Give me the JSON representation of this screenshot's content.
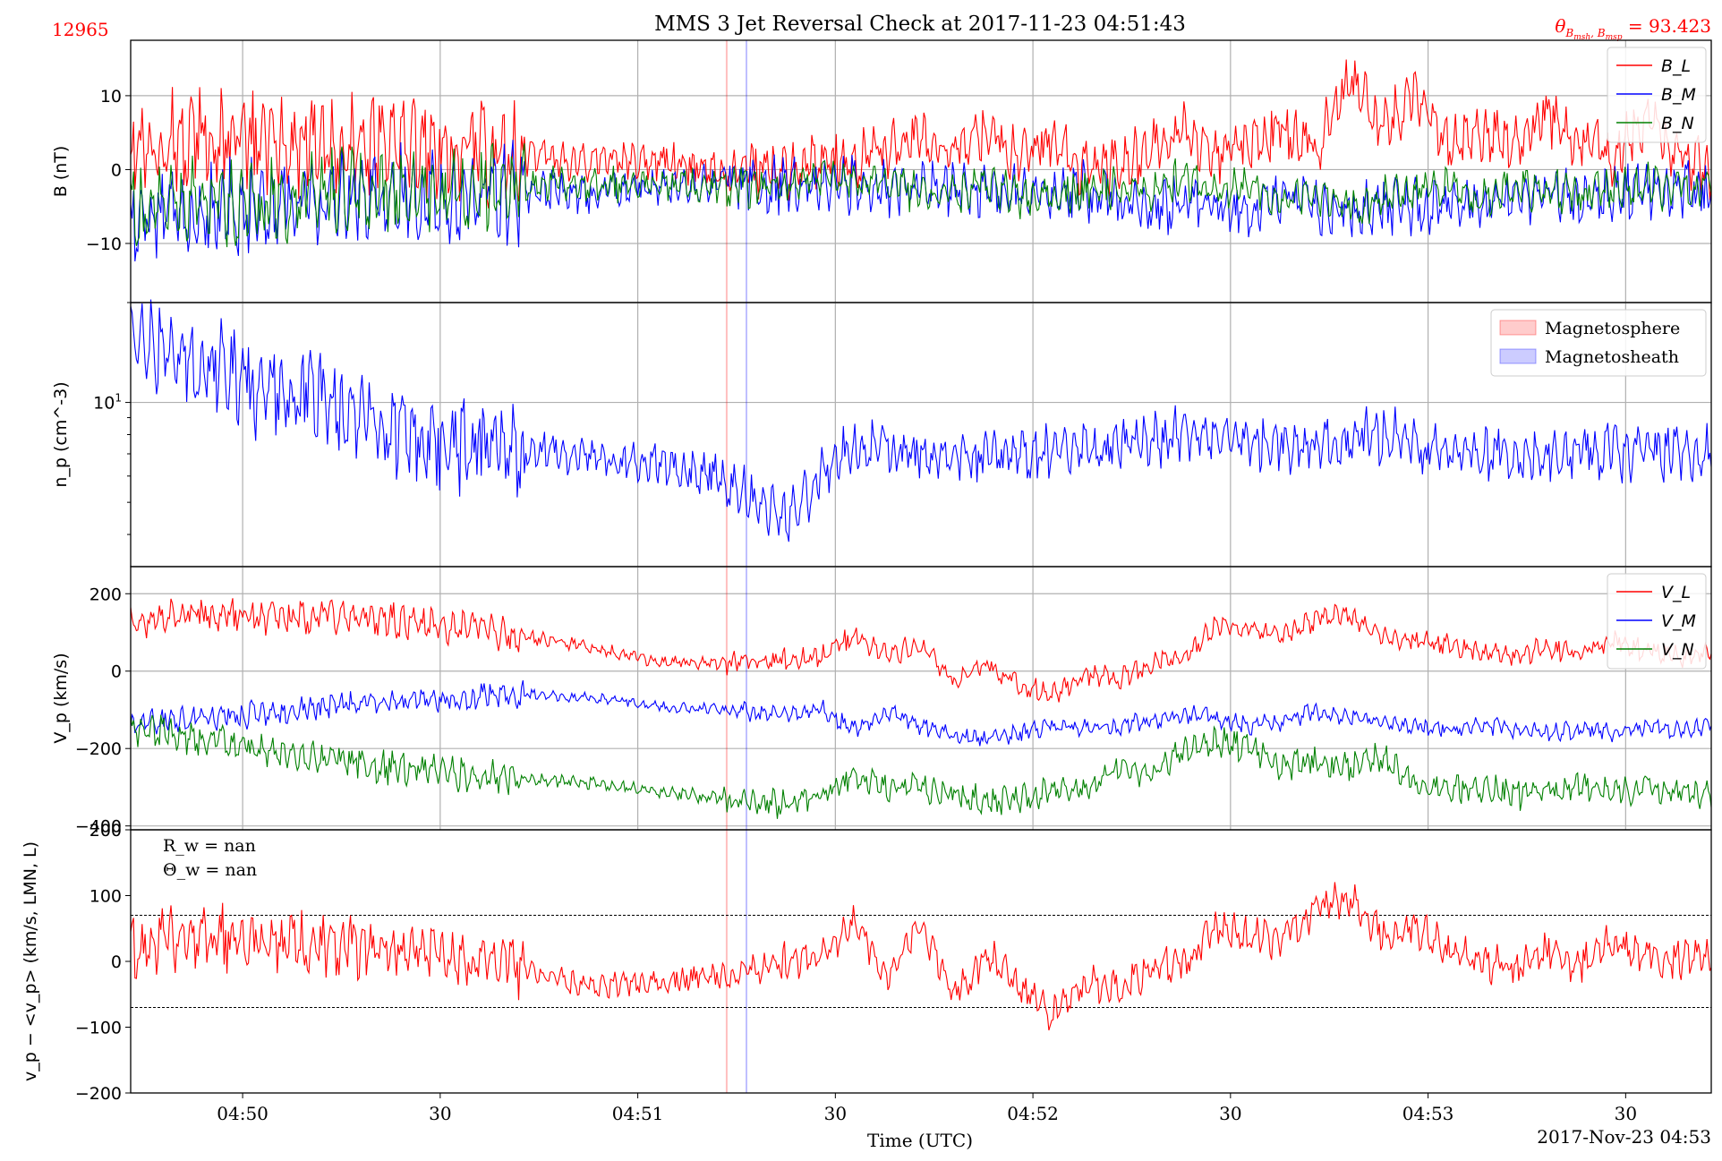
{
  "figure": {
    "title": "MMS 3 Jet Reversal Check at 2017-11-23 04:51:43",
    "event_id": "12965",
    "angle_label": "θ_{B_msh, B_msp} = 93.423",
    "xlabel": "Time (UTC)",
    "date_label": "2017-Nov-23 04:53"
  },
  "colors": {
    "L": "#ff0000",
    "M": "#0000ff",
    "N": "#008000",
    "magnetosphere": "#ff0000",
    "magnetosheath": "#0000ff",
    "event_id": "#ff0000",
    "angle_label": "#ff0000"
  },
  "chart_data": [
    {
      "type": "line",
      "name": "magnetic-field",
      "ylabel": "B (nT)",
      "ylim": [
        -18,
        17.5
      ],
      "yticks": [
        -10,
        0,
        10
      ],
      "grid": true,
      "legend": "upper right",
      "series": [
        {
          "name": "B_L",
          "color": "#ff0000"
        },
        {
          "name": "B_M",
          "color": "#0000ff"
        },
        {
          "name": "B_N",
          "color": "#008000"
        }
      ],
      "x_seconds_after_04_49_43": [
        0,
        10,
        20,
        30,
        40,
        50,
        60,
        70,
        80,
        90,
        100,
        105,
        110,
        115,
        120,
        125,
        130,
        135,
        140,
        145,
        150,
        155,
        160,
        165,
        170,
        175,
        180,
        185,
        190,
        195,
        200,
        205,
        210,
        215,
        220,
        225,
        230,
        235,
        240
      ],
      "values_approx": {
        "B_L": [
          3,
          4,
          4,
          3,
          3,
          2,
          2,
          1,
          1,
          0,
          0,
          1,
          1,
          3,
          4,
          3,
          5,
          2,
          4,
          0,
          1,
          3,
          5,
          2,
          4,
          6,
          3,
          12,
          6,
          10,
          3,
          5,
          3,
          7,
          4,
          2,
          7,
          2,
          0
        ],
        "B_M": [
          -6,
          -6,
          -5,
          -4,
          -4,
          -3,
          -3,
          -3,
          -2,
          -2,
          -2,
          -3,
          -2,
          -3,
          -2,
          -3,
          -3,
          -3,
          -3,
          -3,
          -4,
          -5,
          -4,
          -5,
          -6,
          -4,
          -5,
          -6,
          -5,
          -5,
          -4,
          -5,
          -4,
          -3,
          -4,
          -3,
          -3,
          -3,
          -3
        ],
        "B_N": [
          -5,
          -4,
          -4,
          -3,
          -3,
          -3,
          -2,
          -2,
          -2,
          -2,
          -2,
          -1,
          -1,
          -2,
          -3,
          -3,
          -2,
          -4,
          -3,
          -3,
          -2,
          -3,
          -1,
          -3,
          -2,
          -4,
          -3,
          -5,
          -4,
          -3,
          -2,
          -4,
          -2,
          -3,
          -3,
          -3,
          -2,
          -3,
          -2
        ]
      }
    },
    {
      "type": "line",
      "name": "proton-density",
      "ylabel": "n_p (cm^-3)",
      "yscale": "log",
      "ylim": [
        3.2,
        20
      ],
      "ytick_label": "10^1",
      "grid": true,
      "legend": "upper right",
      "legend_entries": [
        {
          "name": "Magnetosphere",
          "color": "#ff0000"
        },
        {
          "name": "Magnetosheath",
          "color": "#0000ff"
        }
      ],
      "series": [
        {
          "name": "n_p",
          "color": "#0000ff"
        }
      ],
      "x_seconds_after_04_49_43": [
        0,
        10,
        20,
        30,
        40,
        50,
        60,
        70,
        80,
        90,
        95,
        100,
        105,
        110,
        120,
        130,
        140,
        150,
        160,
        170,
        180,
        190,
        200,
        210,
        220,
        230,
        240
      ],
      "values_approx": [
        15,
        14,
        11,
        10,
        8,
        7.5,
        7,
        7,
        6.5,
        6,
        5,
        4.5,
        6,
        7.5,
        7,
        7,
        7,
        7.5,
        8,
        7.5,
        7.5,
        8,
        7,
        7,
        7,
        7,
        7
      ]
    },
    {
      "type": "line",
      "name": "proton-velocity",
      "ylabel": "V_p (km/s)",
      "ylim": [
        -410,
        270
      ],
      "yticks": [
        -400,
        -200,
        0,
        200
      ],
      "grid": true,
      "legend": "upper right",
      "series": [
        {
          "name": "V_L",
          "color": "#ff0000"
        },
        {
          "name": "V_M",
          "color": "#0000ff"
        },
        {
          "name": "V_N",
          "color": "#008000"
        }
      ],
      "x_seconds_after_04_49_43": [
        0,
        10,
        20,
        30,
        40,
        50,
        60,
        70,
        80,
        90,
        100,
        105,
        110,
        115,
        120,
        125,
        130,
        135,
        140,
        145,
        150,
        155,
        160,
        165,
        170,
        175,
        180,
        185,
        190,
        195,
        200,
        205,
        210,
        215,
        220,
        225,
        230,
        235,
        240
      ],
      "values_approx": {
        "V_L": [
          120,
          150,
          140,
          140,
          130,
          110,
          90,
          60,
          25,
          20,
          30,
          40,
          90,
          40,
          70,
          -30,
          20,
          -40,
          -60,
          -10,
          -20,
          20,
          40,
          120,
          110,
          100,
          130,
          150,
          90,
          80,
          70,
          50,
          40,
          60,
          40,
          80,
          50,
          40,
          50
        ],
        "V_M": [
          -140,
          -120,
          -110,
          -90,
          -80,
          -70,
          -60,
          -70,
          -90,
          -100,
          -110,
          -100,
          -150,
          -110,
          -140,
          -170,
          -170,
          -160,
          -140,
          -150,
          -140,
          -130,
          -110,
          -120,
          -140,
          -130,
          -100,
          -120,
          -130,
          -140,
          -150,
          -140,
          -150,
          -160,
          -150,
          -160,
          -140,
          -150,
          -140
        ],
        "V_N": [
          -150,
          -170,
          -200,
          -230,
          -250,
          -270,
          -280,
          -290,
          -310,
          -330,
          -340,
          -320,
          -270,
          -310,
          -300,
          -320,
          -340,
          -330,
          -300,
          -310,
          -250,
          -270,
          -200,
          -180,
          -200,
          -250,
          -230,
          -250,
          -220,
          -290,
          -300,
          -300,
          -320,
          -310,
          -300,
          -310,
          -300,
          -310,
          -320
        ]
      }
    },
    {
      "type": "line",
      "name": "velocity-residual",
      "ylabel": "v_p − <v_p> (km/s, LMN, L)",
      "ylim": [
        -200,
        200
      ],
      "yticks": [
        -200,
        -100,
        0,
        100,
        200
      ],
      "threshold_lines": [
        70,
        -70
      ],
      "grid": false,
      "annotations": [
        "R_w = nan",
        "Θ_w = nan"
      ],
      "series": [
        {
          "name": "residual",
          "color": "#ff0000"
        }
      ],
      "x_seconds_after_04_49_43": [
        0,
        10,
        20,
        30,
        40,
        50,
        60,
        70,
        80,
        90,
        100,
        105,
        110,
        115,
        120,
        125,
        130,
        135,
        140,
        145,
        150,
        155,
        160,
        165,
        170,
        175,
        180,
        185,
        190,
        195,
        200,
        205,
        210,
        215,
        220,
        225,
        230,
        235,
        240
      ],
      "values_approx": [
        20,
        40,
        30,
        30,
        20,
        10,
        -10,
        -40,
        -30,
        -20,
        0,
        10,
        60,
        -20,
        60,
        -50,
        10,
        -40,
        -80,
        -30,
        -40,
        -10,
        0,
        50,
        40,
        30,
        80,
        100,
        40,
        50,
        20,
        0,
        -10,
        20,
        -10,
        30,
        10,
        0,
        10
      ]
    }
  ],
  "x_axis": {
    "range_seconds_after_04_49_43": [
      0,
      240
    ],
    "tick_seconds": [
      17,
      47,
      77,
      107,
      137,
      167,
      197,
      227
    ],
    "tick_labels": [
      "04:50",
      "30",
      "04:51",
      "30",
      "04:52",
      "30",
      "04:53",
      "30"
    ]
  },
  "event_markers": [
    {
      "name": "magnetosphere",
      "seconds": 90.5,
      "color": "#ff0000"
    },
    {
      "name": "magnetosheath",
      "seconds": 93.5,
      "color": "#0000ff"
    }
  ]
}
